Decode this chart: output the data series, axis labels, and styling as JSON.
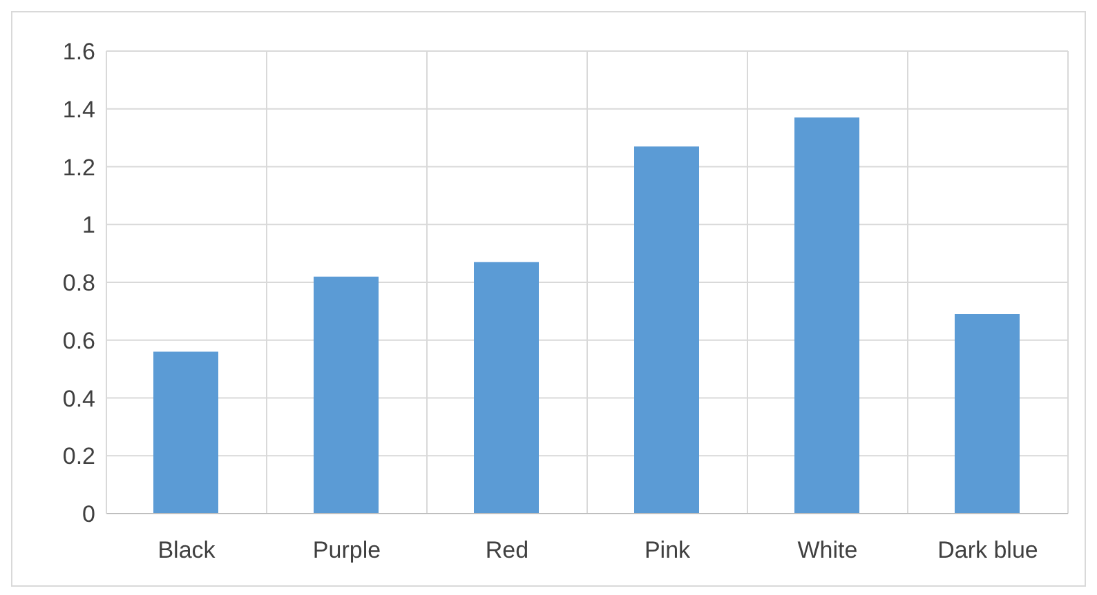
{
  "chart_data": {
    "type": "bar",
    "categories": [
      "Black",
      "Purple",
      "Red",
      "Pink",
      "White",
      "Dark blue"
    ],
    "values": [
      0.56,
      0.82,
      0.87,
      1.27,
      1.37,
      0.69
    ],
    "color": "#5b9bd5",
    "ylim": [
      0,
      1.6
    ],
    "yticks": [
      0,
      0.2,
      0.4,
      0.6,
      0.8,
      1,
      1.2,
      1.4,
      1.6
    ],
    "grid": true
  }
}
